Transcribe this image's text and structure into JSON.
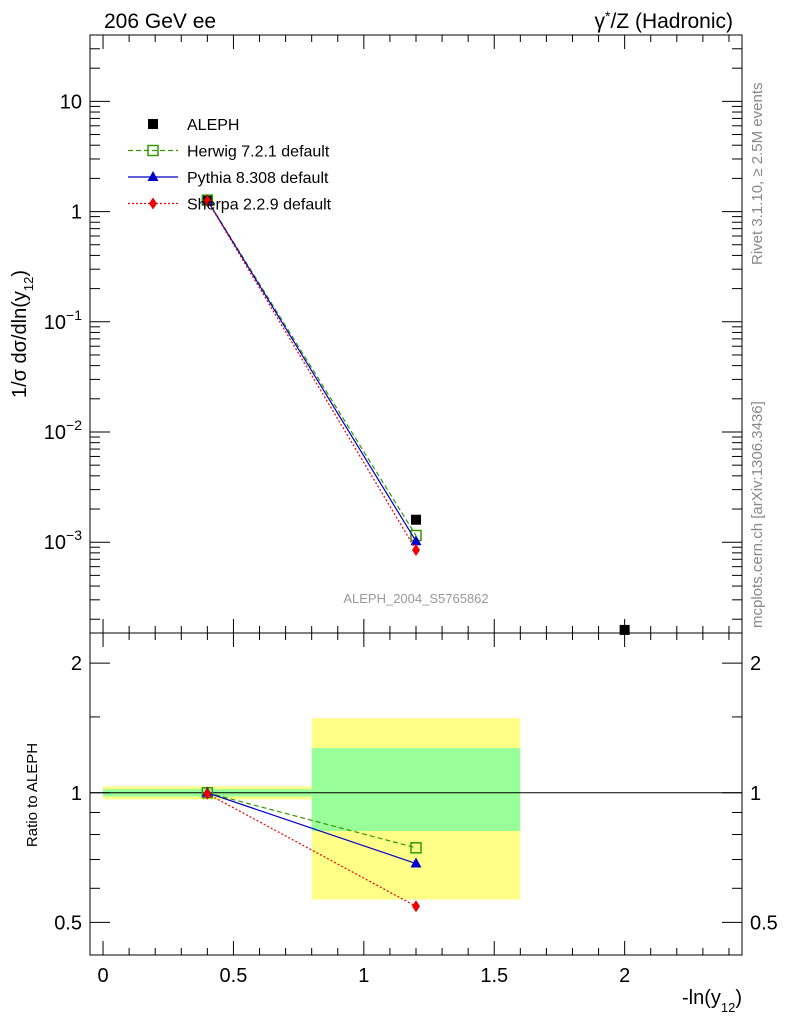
{
  "header": {
    "left": "206 GeV ee",
    "right_gamma": "γ",
    "right_star": "*",
    "right_rest": "/Z (Hadronic)"
  },
  "side_labels": {
    "rivet": "Rivet 3.1.10, ≥ 2.5M events",
    "mcplots": "mcplots.cern.ch [arXiv:1306.3436]"
  },
  "analysis_id": "ALEPH_2004_S5765862",
  "chart_data": [
    {
      "type": "line",
      "panel": "main",
      "ylabel": {
        "prefix": "1/σ  dσ/dln(y",
        "sub": "12",
        "suffix": ")"
      },
      "yscale": "log",
      "xlim": [
        -0.05,
        2.45
      ],
      "ylim": [
        0.00015,
        40
      ],
      "yticks": [
        {
          "value": 10,
          "base": "10",
          "exp": ""
        },
        {
          "value": 1,
          "base": "1",
          "exp": ""
        },
        {
          "value": 0.1,
          "base": "10",
          "exp": "−1"
        },
        {
          "value": 0.01,
          "base": "10",
          "exp": "−2"
        },
        {
          "value": 0.001,
          "base": "10",
          "exp": "−3"
        }
      ],
      "legend": {
        "position": "top-left",
        "entries": [
          {
            "label": "ALEPH",
            "series": "data"
          },
          {
            "label": "Herwig 7.2.1 default",
            "series": "herwig"
          },
          {
            "label": "Pythia 8.308 default",
            "series": "pythia"
          },
          {
            "label": "Sherpa 2.2.9 default",
            "series": "sherpa"
          }
        ]
      },
      "series": [
        {
          "id": "data",
          "name": "ALEPH",
          "color": "#000000",
          "marker": "square",
          "points": [
            {
              "x": 0.4,
              "y": 1.26
            },
            {
              "x": 1.2,
              "y": 0.0016
            },
            {
              "x": 2.0,
              "y": 0.00016
            }
          ]
        },
        {
          "id": "herwig",
          "name": "Herwig 7.2.1 default",
          "color": "#339900",
          "marker": "open-square",
          "line": "dashed",
          "points": [
            {
              "x": 0.4,
              "y": 1.27
            },
            {
              "x": 1.2,
              "y": 0.00115
            }
          ]
        },
        {
          "id": "pythia",
          "name": "Pythia 8.308 default",
          "color": "#0000cc",
          "marker": "triangle",
          "line": "solid",
          "points": [
            {
              "x": 0.4,
              "y": 1.265
            },
            {
              "x": 1.2,
              "y": 0.00102
            }
          ]
        },
        {
          "id": "sherpa",
          "name": "Sherpa 2.2.9 default",
          "color": "#ee0000",
          "marker": "diamond",
          "line": "dotted",
          "points": [
            {
              "x": 0.4,
              "y": 1.255
            },
            {
              "x": 1.2,
              "y": 0.00085
            }
          ]
        }
      ]
    },
    {
      "type": "line",
      "panel": "ratio",
      "ylabel": "Ratio to ALEPH",
      "yscale": "log",
      "xlabel": {
        "prefix": "-ln(y",
        "sub": "12",
        "suffix": ")"
      },
      "xlim": [
        -0.05,
        2.45
      ],
      "ylim": [
        0.42,
        2.35
      ],
      "xticks": [
        {
          "value": 0,
          "label": "0"
        },
        {
          "value": 0.5,
          "label": "0.5"
        },
        {
          "value": 1,
          "label": "1"
        },
        {
          "value": 1.5,
          "label": "1.5"
        },
        {
          "value": 2,
          "label": "2"
        }
      ],
      "yticks": [
        {
          "value": 0.5,
          "label": "0.5"
        },
        {
          "value": 1,
          "label": "1"
        },
        {
          "value": 2,
          "label": "2"
        }
      ],
      "uncertainty_bands": [
        {
          "x0": 0.0,
          "x1": 0.8,
          "yellow": [
            0.965,
            1.035
          ],
          "green": [
            0.98,
            1.02
          ]
        },
        {
          "x0": 0.8,
          "x1": 1.6,
          "yellow": [
            0.565,
            1.49
          ],
          "green": [
            0.815,
            1.27
          ]
        }
      ],
      "series": [
        {
          "id": "herwig",
          "color": "#339900",
          "marker": "open-square",
          "line": "dashed",
          "points": [
            {
              "x": 0.4,
              "y": 1.0
            },
            {
              "x": 1.2,
              "y": 0.745
            }
          ]
        },
        {
          "id": "pythia",
          "color": "#0000cc",
          "marker": "triangle",
          "line": "solid",
          "points": [
            {
              "x": 0.4,
              "y": 1.0
            },
            {
              "x": 1.2,
              "y": 0.685
            }
          ]
        },
        {
          "id": "sherpa",
          "color": "#ee0000",
          "marker": "diamond",
          "line": "dotted",
          "points": [
            {
              "x": 0.4,
              "y": 0.995
            },
            {
              "x": 1.2,
              "y": 0.545
            }
          ]
        }
      ]
    }
  ]
}
